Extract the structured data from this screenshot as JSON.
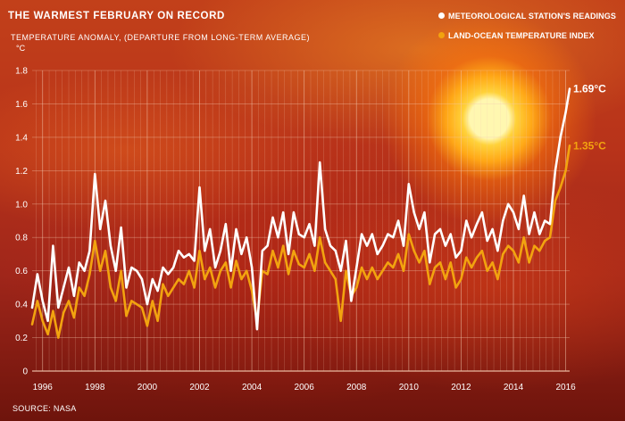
{
  "header": {
    "title": "THE WARMEST FEBRUARY ON RECORD",
    "subtitle": "TEMPERATURE ANOMALY, (DEPARTURE FROM LONG-TERM AVERAGE)",
    "unit": "°C"
  },
  "footer": {
    "source": "SOURCE: NASA"
  },
  "colors": {
    "station": "#ffffff",
    "land_ocean": "#f2a30f",
    "grid": "#f3c9b0"
  },
  "chart_data": {
    "type": "line",
    "title": "THE WARMEST FEBRUARY ON RECORD",
    "xlabel": "",
    "ylabel": "TEMPERATURE ANOMALY, (DEPARTURE FROM LONG-TERM AVERAGE)",
    "ylim": [
      0,
      1.8
    ],
    "yticks": [
      "0",
      "0.2",
      "0.4",
      "0.6",
      "0.8",
      "1.0",
      "1.2",
      "1.4",
      "1.6",
      "1.8"
    ],
    "xlim": [
      1995.6,
      2016.15
    ],
    "xticks": [
      "1996",
      "1998",
      "2000",
      "2002",
      "2004",
      "2006",
      "2008",
      "2010",
      "2012",
      "2014",
      "2016"
    ],
    "grid": true,
    "legend_position": "top-right",
    "series": [
      {
        "name": "METEOROLOGICAL STATION'S READINGS",
        "color": "#ffffff",
        "end_label": "1.69°C",
        "x": [
          1995.6,
          1995.8,
          1996.0,
          1996.2,
          1996.4,
          1996.6,
          1996.8,
          1997.0,
          1997.2,
          1997.4,
          1997.6,
          1997.8,
          1998.0,
          1998.2,
          1998.4,
          1998.6,
          1998.8,
          1999.0,
          1999.2,
          1999.4,
          1999.6,
          1999.8,
          2000.0,
          2000.2,
          2000.4,
          2000.6,
          2000.8,
          2001.0,
          2001.2,
          2001.4,
          2001.6,
          2001.8,
          2002.0,
          2002.2,
          2002.4,
          2002.6,
          2002.8,
          2003.0,
          2003.2,
          2003.4,
          2003.6,
          2003.8,
          2004.0,
          2004.2,
          2004.4,
          2004.6,
          2004.8,
          2005.0,
          2005.2,
          2005.4,
          2005.6,
          2005.8,
          2006.0,
          2006.2,
          2006.4,
          2006.6,
          2006.8,
          2007.0,
          2007.2,
          2007.4,
          2007.6,
          2007.8,
          2008.0,
          2008.2,
          2008.4,
          2008.6,
          2008.8,
          2009.0,
          2009.2,
          2009.4,
          2009.6,
          2009.8,
          2010.0,
          2010.2,
          2010.4,
          2010.6,
          2010.8,
          2011.0,
          2011.2,
          2011.4,
          2011.6,
          2011.8,
          2012.0,
          2012.2,
          2012.4,
          2012.6,
          2012.8,
          2013.0,
          2013.2,
          2013.4,
          2013.6,
          2013.8,
          2014.0,
          2014.2,
          2014.4,
          2014.6,
          2014.8,
          2015.0,
          2015.2,
          2015.4,
          2015.6,
          2015.8,
          2016.0,
          2016.15
        ],
        "y": [
          0.38,
          0.58,
          0.42,
          0.3,
          0.75,
          0.38,
          0.5,
          0.62,
          0.45,
          0.65,
          0.6,
          0.72,
          1.18,
          0.85,
          1.02,
          0.75,
          0.6,
          0.86,
          0.5,
          0.62,
          0.6,
          0.55,
          0.4,
          0.55,
          0.48,
          0.62,
          0.58,
          0.62,
          0.72,
          0.68,
          0.7,
          0.66,
          1.1,
          0.72,
          0.85,
          0.62,
          0.72,
          0.88,
          0.6,
          0.85,
          0.7,
          0.8,
          0.62,
          0.25,
          0.72,
          0.75,
          0.92,
          0.8,
          0.95,
          0.7,
          0.95,
          0.82,
          0.8,
          0.88,
          0.75,
          1.25,
          0.85,
          0.75,
          0.72,
          0.6,
          0.78,
          0.42,
          0.62,
          0.82,
          0.75,
          0.82,
          0.7,
          0.75,
          0.82,
          0.8,
          0.9,
          0.75,
          1.12,
          0.95,
          0.85,
          0.95,
          0.65,
          0.82,
          0.85,
          0.75,
          0.82,
          0.68,
          0.72,
          0.9,
          0.8,
          0.88,
          0.95,
          0.78,
          0.85,
          0.72,
          0.9,
          1.0,
          0.95,
          0.85,
          1.05,
          0.82,
          0.95,
          0.82,
          0.9,
          0.88,
          1.2,
          1.4,
          1.55,
          1.69
        ]
      },
      {
        "name": "LAND-OCEAN TEMPERATURE INDEX",
        "color": "#f2a30f",
        "end_label": "1.35°C",
        "x": [
          1995.6,
          1995.8,
          1996.0,
          1996.2,
          1996.4,
          1996.6,
          1996.8,
          1997.0,
          1997.2,
          1997.4,
          1997.6,
          1997.8,
          1998.0,
          1998.2,
          1998.4,
          1998.6,
          1998.8,
          1999.0,
          1999.2,
          1999.4,
          1999.6,
          1999.8,
          2000.0,
          2000.2,
          2000.4,
          2000.6,
          2000.8,
          2001.0,
          2001.2,
          2001.4,
          2001.6,
          2001.8,
          2002.0,
          2002.2,
          2002.4,
          2002.6,
          2002.8,
          2003.0,
          2003.2,
          2003.4,
          2003.6,
          2003.8,
          2004.0,
          2004.2,
          2004.4,
          2004.6,
          2004.8,
          2005.0,
          2005.2,
          2005.4,
          2005.6,
          2005.8,
          2006.0,
          2006.2,
          2006.4,
          2006.6,
          2006.8,
          2007.0,
          2007.2,
          2007.4,
          2007.6,
          2007.8,
          2008.0,
          2008.2,
          2008.4,
          2008.6,
          2008.8,
          2009.0,
          2009.2,
          2009.4,
          2009.6,
          2009.8,
          2010.0,
          2010.2,
          2010.4,
          2010.6,
          2010.8,
          2011.0,
          2011.2,
          2011.4,
          2011.6,
          2011.8,
          2012.0,
          2012.2,
          2012.4,
          2012.6,
          2012.8,
          2013.0,
          2013.2,
          2013.4,
          2013.6,
          2013.8,
          2014.0,
          2014.2,
          2014.4,
          2014.6,
          2014.8,
          2015.0,
          2015.2,
          2015.4,
          2015.6,
          2015.8,
          2016.0,
          2016.15
        ],
        "y": [
          0.28,
          0.42,
          0.3,
          0.22,
          0.36,
          0.2,
          0.35,
          0.42,
          0.32,
          0.5,
          0.45,
          0.58,
          0.78,
          0.6,
          0.72,
          0.5,
          0.42,
          0.6,
          0.33,
          0.42,
          0.4,
          0.38,
          0.27,
          0.42,
          0.3,
          0.52,
          0.45,
          0.5,
          0.55,
          0.52,
          0.6,
          0.5,
          0.72,
          0.55,
          0.62,
          0.5,
          0.6,
          0.65,
          0.5,
          0.66,
          0.55,
          0.6,
          0.48,
          0.3,
          0.6,
          0.58,
          0.72,
          0.62,
          0.75,
          0.58,
          0.72,
          0.64,
          0.62,
          0.7,
          0.6,
          0.8,
          0.65,
          0.6,
          0.55,
          0.3,
          0.6,
          0.45,
          0.5,
          0.62,
          0.55,
          0.62,
          0.55,
          0.6,
          0.65,
          0.62,
          0.7,
          0.6,
          0.82,
          0.72,
          0.65,
          0.72,
          0.52,
          0.62,
          0.65,
          0.55,
          0.65,
          0.5,
          0.55,
          0.68,
          0.62,
          0.68,
          0.72,
          0.6,
          0.65,
          0.55,
          0.7,
          0.75,
          0.72,
          0.65,
          0.8,
          0.65,
          0.75,
          0.72,
          0.78,
          0.8,
          1.02,
          1.1,
          1.2,
          1.35
        ]
      }
    ]
  }
}
